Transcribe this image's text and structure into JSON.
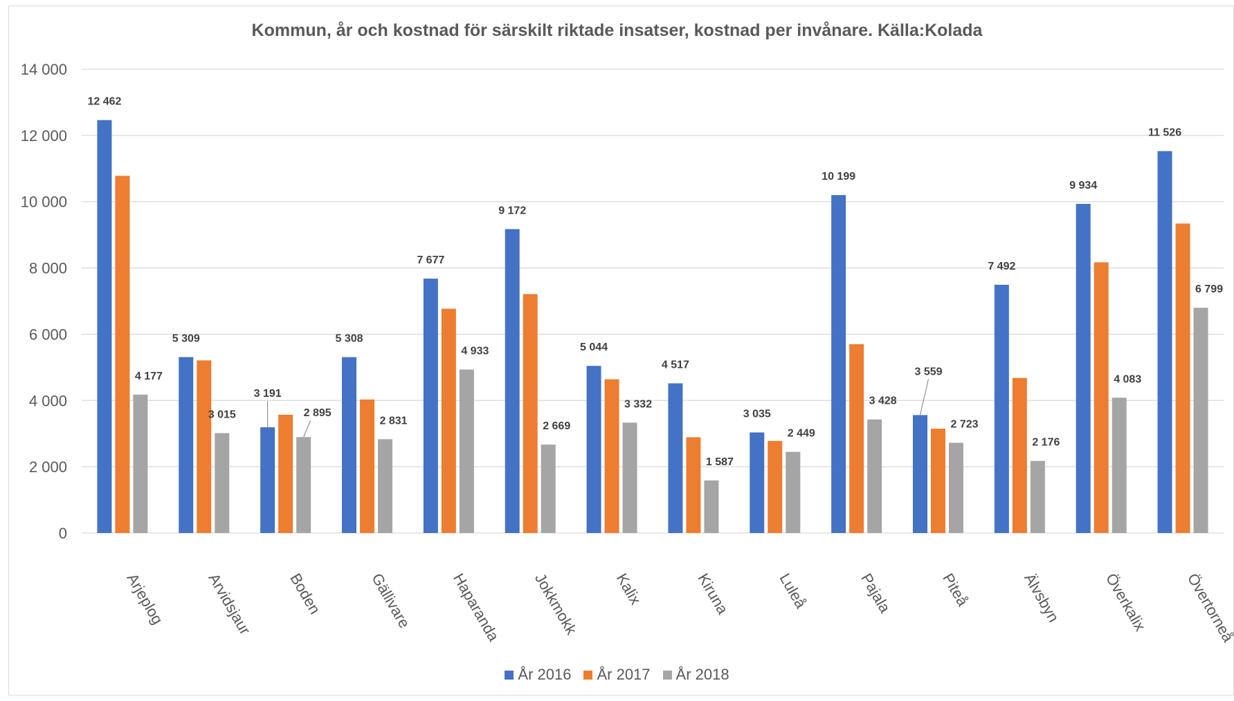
{
  "chart_data": {
    "type": "bar",
    "title": "Kommun, år och kostnad för särskilt riktade insatser, kostnad per invånare. Källa:Kolada",
    "xlabel": "",
    "ylabel": "",
    "ylim": [
      0,
      14000
    ],
    "yticks": [
      0,
      2000,
      4000,
      6000,
      8000,
      10000,
      12000,
      14000
    ],
    "ytick_labels": [
      "0",
      "2 000",
      "4 000",
      "6 000",
      "8 000",
      "10 000",
      "12 000",
      "14 000"
    ],
    "grid": true,
    "legend_position": "bottom",
    "categories": [
      "Arjeplog",
      "Arvidsjaur",
      "Boden",
      "Gällivare",
      "Haparanda",
      "Jokkmokk",
      "Kalix",
      "Kiruna",
      "Luleå",
      "Pajala",
      "Piteå",
      "Älvsbyn",
      "Överkalix",
      "Övertorneå"
    ],
    "series": [
      {
        "name": "År 2016",
        "color": "#4472c4",
        "values": [
          12462,
          5309,
          3191,
          5308,
          7677,
          9172,
          5044,
          4517,
          3035,
          10199,
          3559,
          7492,
          9934,
          11526
        ],
        "labels": [
          "12 462",
          "5 309",
          "3 191",
          "5 308",
          "7 677",
          "9 172",
          "5 044",
          "4 517",
          "3 035",
          "10 199",
          "3 559",
          "7 492",
          "9 934",
          "11 526"
        ]
      },
      {
        "name": "År 2017",
        "color": "#ed7d31",
        "values": [
          10780,
          5210,
          3570,
          4030,
          6770,
          7210,
          4640,
          2890,
          2780,
          5700,
          3150,
          4680,
          8170,
          9340
        ],
        "labels": [
          "",
          "",
          "",
          "",
          "",
          "",
          "",
          "",
          "",
          "",
          "",
          "",
          "",
          ""
        ]
      },
      {
        "name": "År 2018",
        "color": "#a5a5a5",
        "values": [
          4177,
          3015,
          2895,
          2831,
          4933,
          2669,
          3332,
          1587,
          2449,
          3428,
          2723,
          2176,
          4083,
          6799
        ],
        "labels": [
          "4 177",
          "3 015",
          "2 895",
          "2 831",
          "4 933",
          "2 669",
          "3 332",
          "1 587",
          "2 449",
          "3 428",
          "2 723",
          "2 176",
          "4 083",
          "6 799"
        ]
      }
    ]
  }
}
